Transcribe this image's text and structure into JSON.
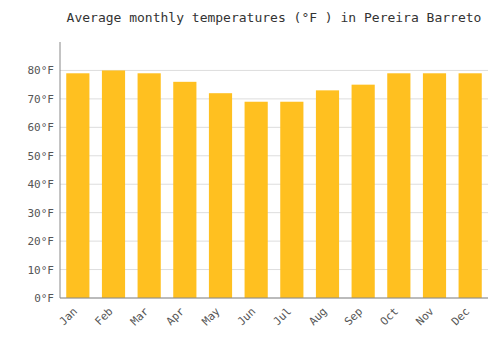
{
  "chart_data": {
    "type": "bar",
    "title": "Average monthly temperatures (°F ) in Pereira Barreto",
    "categories": [
      "Jan",
      "Feb",
      "Mar",
      "Apr",
      "May",
      "Jun",
      "Jul",
      "Aug",
      "Sep",
      "Oct",
      "Nov",
      "Dec"
    ],
    "values": [
      79,
      80,
      79,
      76,
      72,
      69,
      69,
      73,
      75,
      79,
      79,
      79
    ],
    "color": "#FFC020",
    "ylim": [
      0,
      90
    ],
    "yticks": [
      {
        "value": 0,
        "label": "0°F"
      },
      {
        "value": 10,
        "label": "10°F"
      },
      {
        "value": 20,
        "label": "20°F"
      },
      {
        "value": 30,
        "label": "30°F"
      },
      {
        "value": 40,
        "label": "40°F"
      },
      {
        "value": 50,
        "label": "50°F"
      },
      {
        "value": 60,
        "label": "60°F"
      },
      {
        "value": 70,
        "label": "70°F"
      },
      {
        "value": 80,
        "label": "80°F"
      }
    ],
    "grid": true
  }
}
